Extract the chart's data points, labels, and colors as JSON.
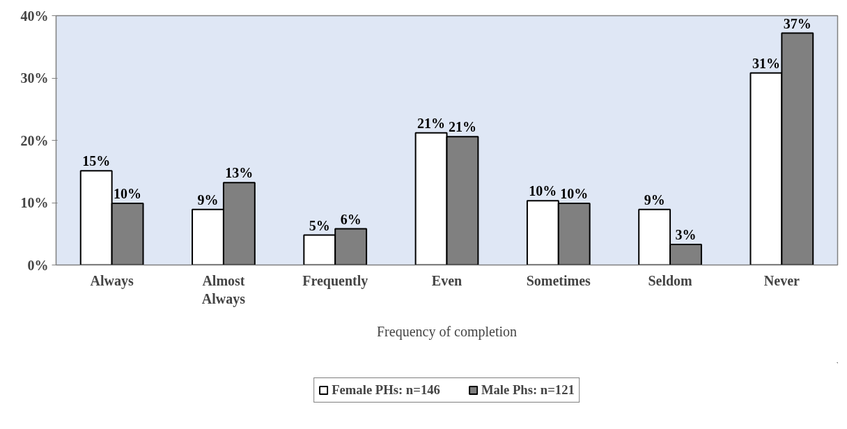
{
  "chart_data": {
    "type": "bar",
    "xlabel": "Frequency of completion",
    "categories": [
      "Always",
      "Almost Always",
      "Frequently",
      "Even",
      "Sometimes",
      "Seldom",
      "Never"
    ],
    "series": [
      {
        "name": "Female PHs: n=146",
        "color": "#ffffff",
        "values": [
          15.1,
          8.9,
          4.8,
          21.2,
          10.3,
          8.9,
          30.8
        ],
        "value_labels": [
          "15%",
          "9%",
          "5%",
          "21%",
          "10%",
          "9%",
          "31%"
        ]
      },
      {
        "name": "Male Phs: n=121",
        "color": "#808080",
        "values": [
          9.9,
          13.2,
          5.8,
          20.6,
          9.9,
          3.3,
          37.2
        ],
        "value_labels": [
          "10%",
          "13%",
          "6%",
          "21%",
          "10%",
          "3%",
          "37%"
        ]
      }
    ],
    "ylim": [
      0,
      40
    ],
    "yticks": [
      {
        "value": 0,
        "label": "0%"
      },
      {
        "value": 10,
        "label": "10%"
      },
      {
        "value": 20,
        "label": "20%"
      },
      {
        "value": 30,
        "label": "30%"
      },
      {
        "value": 40,
        "label": "40%"
      }
    ],
    "grid": false,
    "legend": "bottom"
  }
}
